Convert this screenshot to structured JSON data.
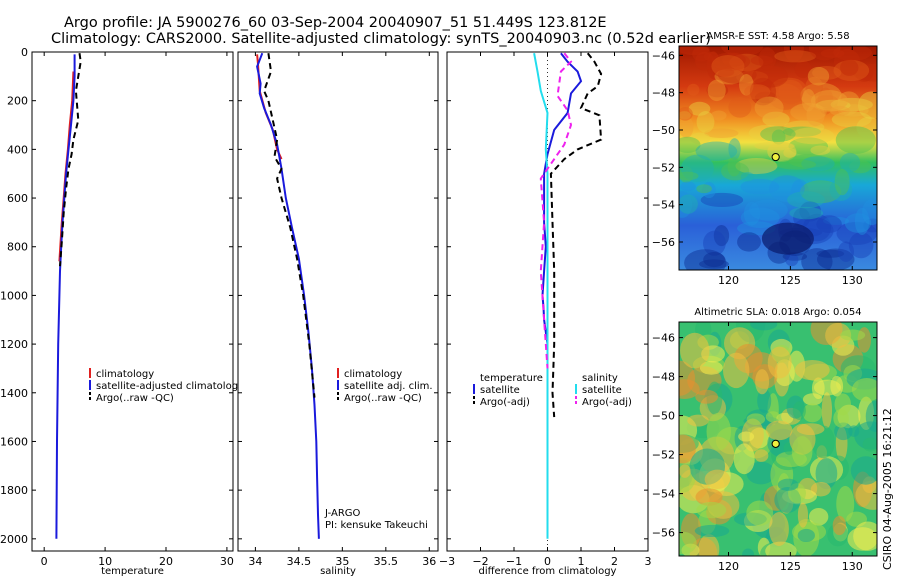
{
  "header": {
    "line1": "Argo profile: JA 5900276_60 03-Sep-2004 20040907_51 51.449S 123.812E",
    "line2": "Climatology: CARS2000. Satellite-adjusted climatology: synTS_20040903.nc (0.52d earlier)"
  },
  "credit": "CSIRO 04-Aug-2005 16:21:12",
  "colors": {
    "climatology": "#e02020",
    "satellite": "#1a1adc",
    "argo": "#000000",
    "satellite_salinity": "#22ddee",
    "argo_salinity_adj": "#ee22ee"
  },
  "chart_data": [
    {
      "type": "line",
      "panel": "temperature",
      "xlabel": "temperature",
      "xlim": [
        -2,
        31
      ],
      "ylim": [
        2050,
        0
      ],
      "xticks": [
        0,
        10,
        20,
        30
      ],
      "yticks": [
        0,
        200,
        400,
        600,
        800,
        1000,
        1200,
        1400,
        1600,
        1800,
        2000
      ],
      "legend": [
        "climatology",
        "satellite-adjusted climatology",
        "Argo(..raw -QC)"
      ],
      "series": [
        {
          "name": "climatology",
          "color": "#e02020",
          "dash": "",
          "x": [
            4.8,
            4.6,
            4.2,
            3.9,
            3.5,
            3.2,
            2.9,
            2.5
          ],
          "y": [
            80,
            200,
            300,
            400,
            500,
            600,
            700,
            860
          ]
        },
        {
          "name": "satellite-adjusted climatology",
          "color": "#1a1adc",
          "dash": "",
          "x": [
            5.0,
            5.0,
            4.8,
            4.4,
            4.0,
            3.6,
            3.3,
            3.0,
            2.8,
            2.6,
            2.5,
            2.4,
            2.3,
            2.25,
            2.2,
            2.15,
            2.1,
            2.05,
            2.0
          ],
          "y": [
            10,
            100,
            200,
            300,
            400,
            500,
            600,
            700,
            800,
            900,
            1000,
            1100,
            1200,
            1300,
            1400,
            1500,
            1600,
            1800,
            2000
          ]
        },
        {
          "name": "Argo(..raw -QC)",
          "color": "#000000",
          "dash": "6,4",
          "x": [
            5.8,
            6.0,
            5.2,
            5.6,
            4.8,
            4.5,
            4.0,
            3.6,
            3.2,
            2.9,
            2.6
          ],
          "y": [
            5,
            40,
            160,
            280,
            360,
            420,
            480,
            560,
            660,
            780,
            880
          ]
        }
      ]
    },
    {
      "type": "line",
      "panel": "salinity",
      "xlabel": "salinity",
      "xlim": [
        33.8,
        36.1
      ],
      "ylim": [
        2050,
        0
      ],
      "xticks": [
        34,
        34.5,
        35,
        35.5,
        36
      ],
      "legend": [
        "climatology",
        "satellite adj. clim.",
        "Argo(..raw -QC)"
      ],
      "annotation": [
        "J-ARGO",
        "PI: kensuke Takeuchi"
      ],
      "series": [
        {
          "name": "climatology",
          "color": "#e02020",
          "dash": "",
          "x": [
            34.02,
            34.03,
            34.05,
            34.12,
            34.2,
            34.25,
            34.3
          ],
          "y": [
            10,
            50,
            160,
            250,
            320,
            400,
            440
          ]
        },
        {
          "name": "satellite adj. clim.",
          "color": "#1a1adc",
          "dash": "",
          "x": [
            34.08,
            34.02,
            34.06,
            34.05,
            34.1,
            34.18,
            34.25,
            34.27,
            34.3,
            34.35,
            34.42,
            34.5,
            34.56,
            34.61,
            34.65,
            34.68,
            34.7,
            34.71,
            34.72,
            34.73
          ],
          "y": [
            5,
            60,
            130,
            170,
            230,
            300,
            380,
            420,
            480,
            600,
            720,
            850,
            1000,
            1150,
            1300,
            1450,
            1600,
            1750,
            1900,
            2000
          ]
        },
        {
          "name": "Argo(..raw -QC)",
          "color": "#000000",
          "dash": "6,4",
          "x": [
            34.15,
            34.18,
            34.1,
            34.15,
            34.2,
            34.25,
            34.22,
            34.3,
            34.25,
            34.3,
            34.4,
            34.48,
            34.55,
            34.62,
            34.68
          ],
          "y": [
            5,
            80,
            160,
            200,
            280,
            360,
            430,
            480,
            520,
            600,
            720,
            850,
            1000,
            1200,
            1420
          ]
        }
      ]
    },
    {
      "type": "line",
      "panel": "difference",
      "xlabel": "difference from climatology",
      "xlim": [
        -3,
        3
      ],
      "ylim": [
        2050,
        0
      ],
      "xticks": [
        -3,
        -2,
        -1,
        0,
        1,
        2,
        3
      ],
      "legend_left": [
        "temperature",
        "satellite",
        "Argo(-adj)"
      ],
      "legend_right": [
        "salinity",
        "satellite",
        "Argo(-adj)"
      ],
      "series": [
        {
          "name": "temperature satellite",
          "color": "#1a1adc",
          "dash": "",
          "x": [
            0.4,
            0.6,
            0.9,
            1.0,
            0.7,
            0.6,
            0.2,
            0.0,
            -0.1,
            -0.1,
            -0.1,
            -0.05,
            -0.1,
            -0.15,
            -0.12,
            -0.1,
            0.0
          ],
          "y": [
            5,
            40,
            80,
            120,
            170,
            250,
            320,
            420,
            500,
            600,
            700,
            800,
            900,
            1000,
            1050,
            1100,
            1200
          ]
        },
        {
          "name": "temperature Argo(-adj)",
          "color": "#000000",
          "dash": "6,4",
          "x": [
            1.2,
            1.4,
            1.6,
            1.5,
            1.2,
            1.0,
            1.55,
            1.6,
            0.9,
            0.5,
            0.1,
            0.15,
            0.2,
            0.2,
            0.15,
            0.2
          ],
          "y": [
            5,
            40,
            90,
            140,
            170,
            230,
            260,
            360,
            400,
            440,
            500,
            700,
            900,
            1200,
            1400,
            1500
          ]
        },
        {
          "name": "salinity satellite",
          "color": "#22ddee",
          "dash": "",
          "x": [
            -0.4,
            -0.3,
            -0.2,
            0.0,
            -0.05,
            0.0,
            0.0,
            0.0,
            0.0,
            0.0,
            0.0,
            0.0,
            0.0,
            0.0
          ],
          "y": [
            5,
            80,
            160,
            250,
            400,
            500,
            700,
            900,
            1100,
            1300,
            1500,
            1700,
            1900,
            2000
          ]
        },
        {
          "name": "salinity Argo(-adj)",
          "color": "#ee22ee",
          "dash": "6,4",
          "x": [
            0.5,
            0.7,
            0.4,
            0.3,
            0.6,
            0.7,
            0.5,
            0.0,
            -0.2,
            -0.1,
            -0.2,
            -0.1,
            0.0
          ],
          "y": [
            5,
            40,
            80,
            180,
            240,
            300,
            380,
            480,
            520,
            700,
            900,
            1100,
            1300
          ]
        }
      ]
    },
    {
      "type": "heatmap",
      "panel": "AMSR-E SST",
      "title": "AMSR-E SST: 4.58 Argo: 5.58",
      "xlim": [
        116,
        132
      ],
      "ylim": [
        -57.5,
        -45.5
      ],
      "xticks": [
        120,
        125,
        130
      ],
      "yticks": [
        -46,
        -48,
        -50,
        -52,
        -54,
        -56
      ],
      "marker": {
        "lon": 123.812,
        "lat": -51.449
      }
    },
    {
      "type": "heatmap",
      "panel": "Altimetric SLA",
      "title": "Altimetric SLA: 0.018 Argo: 0.054",
      "xlim": [
        116,
        132
      ],
      "ylim": [
        -57.2,
        -45.2
      ],
      "xticks": [
        120,
        125,
        130
      ],
      "yticks": [
        -46,
        -48,
        -50,
        -52,
        -54,
        -56
      ],
      "marker": {
        "lon": 123.812,
        "lat": -51.449
      }
    }
  ]
}
